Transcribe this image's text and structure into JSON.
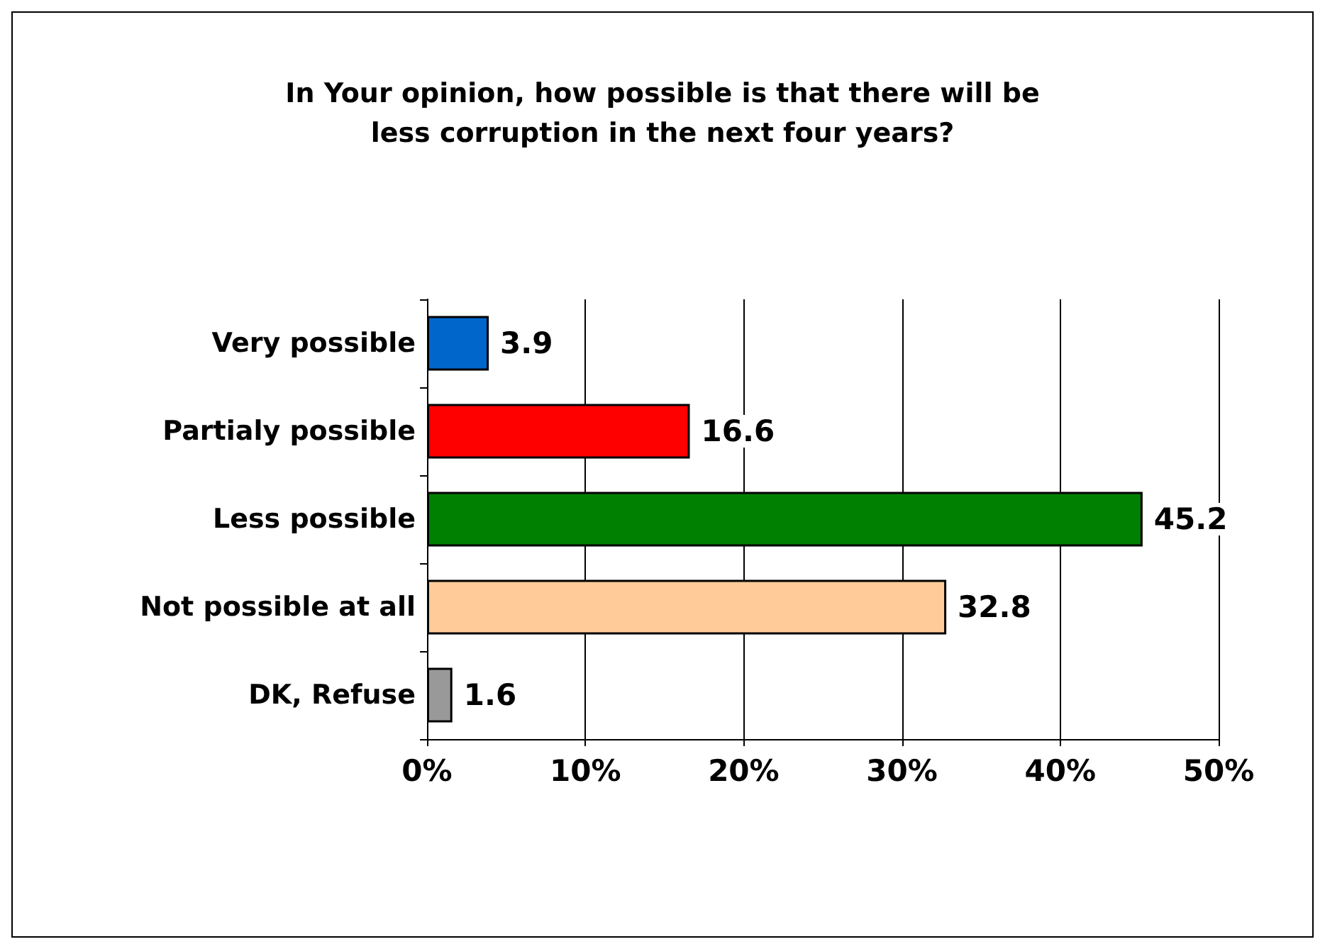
{
  "chart_data": {
    "type": "bar",
    "orientation": "horizontal",
    "title": "In Your opinion, how possible is that there will be\nless corruption in the next four years?",
    "categories": [
      "Very possible",
      "Partialy possible",
      "Less possible",
      "Not possible at all",
      "DK, Refuse"
    ],
    "values": [
      3.9,
      16.6,
      45.2,
      32.8,
      1.6
    ],
    "colors": [
      "#0066cc",
      "#ff0000",
      "#008000",
      "#ffcc99",
      "#999999"
    ],
    "xlim": [
      0,
      50
    ],
    "xticks": [
      {
        "value": 0,
        "label": "0%"
      },
      {
        "value": 10,
        "label": "10%"
      },
      {
        "value": 20,
        "label": "20%"
      },
      {
        "value": 30,
        "label": "30%"
      },
      {
        "value": 40,
        "label": "40%"
      },
      {
        "value": 50,
        "label": "50%"
      }
    ],
    "grid": "x",
    "data_labels": true
  }
}
